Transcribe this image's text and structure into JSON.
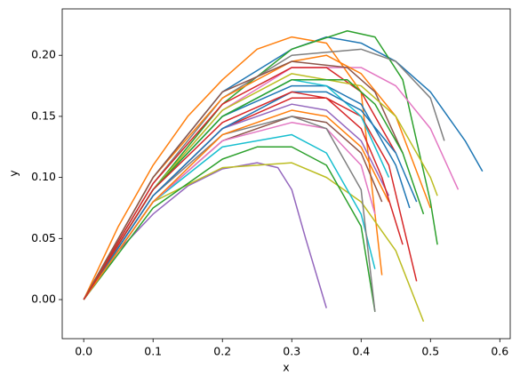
{
  "chart_data": {
    "type": "line",
    "x_label": "x",
    "y_label": "y",
    "xlim": [
      -0.031,
      0.615
    ],
    "ylim": [
      -0.032,
      0.238
    ],
    "xticks": [
      {
        "value": 0,
        "label": "0.0"
      },
      {
        "value": 0.1,
        "label": "0.1"
      },
      {
        "value": 0.2,
        "label": "0.2"
      },
      {
        "value": 0.3,
        "label": "0.3"
      },
      {
        "value": 0.4,
        "label": "0.4"
      },
      {
        "value": 0.5,
        "label": "0.5"
      },
      {
        "value": 0.6,
        "label": "0.6"
      }
    ],
    "yticks": [
      {
        "value": 0,
        "label": "0.00"
      },
      {
        "value": 0.05,
        "label": "0.05"
      },
      {
        "value": 0.1,
        "label": "0.10"
      },
      {
        "value": 0.15,
        "label": "0.15"
      },
      {
        "value": 0.2,
        "label": "0.20"
      }
    ],
    "grid": false,
    "series": [
      {
        "color": "#1f77b4",
        "x": [
          0,
          0.1,
          0.2,
          0.3,
          0.35,
          0.4,
          0.45,
          0.5,
          0.55,
          0.575
        ],
        "values": [
          0,
          0.1,
          0.17,
          0.205,
          0.215,
          0.21,
          0.195,
          0.17,
          0.13,
          0.105
        ]
      },
      {
        "color": "#ff7f0e",
        "x": [
          0,
          0.05,
          0.1,
          0.15,
          0.2,
          0.25,
          0.3,
          0.35,
          0.4,
          0.43
        ],
        "values": [
          0,
          0.06,
          0.11,
          0.15,
          0.18,
          0.205,
          0.215,
          0.21,
          0.17,
          0.02
        ]
      },
      {
        "color": "#2ca02c",
        "x": [
          0,
          0.1,
          0.2,
          0.3,
          0.38,
          0.42,
          0.46,
          0.5,
          0.51
        ],
        "values": [
          0,
          0.09,
          0.16,
          0.205,
          0.22,
          0.215,
          0.18,
          0.08,
          0.045
        ]
      },
      {
        "color": "#d62728",
        "x": [
          0,
          0.1,
          0.2,
          0.3,
          0.35,
          0.4,
          0.44,
          0.48
        ],
        "values": [
          0,
          0.085,
          0.14,
          0.165,
          0.165,
          0.15,
          0.11,
          0.015
        ]
      },
      {
        "color": "#9467bd",
        "x": [
          0,
          0.05,
          0.1,
          0.15,
          0.2,
          0.25,
          0.28,
          0.3,
          0.32,
          0.35
        ],
        "values": [
          0,
          0.04,
          0.07,
          0.093,
          0.107,
          0.112,
          0.108,
          0.09,
          0.05,
          -0.007
        ]
      },
      {
        "color": "#8c564b",
        "x": [
          0,
          0.1,
          0.2,
          0.3,
          0.35,
          0.4,
          0.43
        ],
        "values": [
          0,
          0.08,
          0.13,
          0.15,
          0.145,
          0.12,
          0.08
        ]
      },
      {
        "color": "#e377c2",
        "x": [
          0,
          0.1,
          0.2,
          0.3,
          0.4,
          0.45,
          0.5,
          0.54
        ],
        "values": [
          0,
          0.09,
          0.155,
          0.19,
          0.19,
          0.175,
          0.14,
          0.09
        ]
      },
      {
        "color": "#7f7f7f",
        "x": [
          0,
          0.1,
          0.2,
          0.3,
          0.4,
          0.45,
          0.5,
          0.52
        ],
        "values": [
          0,
          0.095,
          0.165,
          0.2,
          0.205,
          0.195,
          0.165,
          0.13
        ]
      },
      {
        "color": "#bcbd22",
        "x": [
          0,
          0.1,
          0.2,
          0.3,
          0.35,
          0.4,
          0.45,
          0.49
        ],
        "values": [
          0,
          0.08,
          0.108,
          0.112,
          0.1,
          0.08,
          0.04,
          -0.018
        ]
      },
      {
        "color": "#17becf",
        "x": [
          0,
          0.1,
          0.2,
          0.3,
          0.35,
          0.4,
          0.42
        ],
        "values": [
          0,
          0.08,
          0.125,
          0.135,
          0.12,
          0.07,
          0.025
        ]
      },
      {
        "color": "#1f77b4",
        "x": [
          0,
          0.1,
          0.2,
          0.3,
          0.35,
          0.4,
          0.45,
          0.47
        ],
        "values": [
          0,
          0.09,
          0.15,
          0.175,
          0.175,
          0.16,
          0.11,
          0.075
        ]
      },
      {
        "color": "#ff7f0e",
        "x": [
          0,
          0.1,
          0.2,
          0.3,
          0.35,
          0.4,
          0.45,
          0.5
        ],
        "values": [
          0,
          0.1,
          0.165,
          0.195,
          0.2,
          0.185,
          0.15,
          0.075
        ]
      },
      {
        "color": "#2ca02c",
        "x": [
          0,
          0.1,
          0.2,
          0.25,
          0.3,
          0.35,
          0.4,
          0.42
        ],
        "values": [
          0,
          0.075,
          0.115,
          0.125,
          0.125,
          0.11,
          0.06,
          -0.01
        ]
      },
      {
        "color": "#d62728",
        "x": [
          0,
          0.1,
          0.2,
          0.3,
          0.35,
          0.4,
          0.45
        ],
        "values": [
          0,
          0.095,
          0.16,
          0.19,
          0.19,
          0.17,
          0.12
        ]
      },
      {
        "color": "#9467bd",
        "x": [
          0,
          0.1,
          0.2,
          0.3,
          0.35,
          0.4,
          0.44
        ],
        "values": [
          0,
          0.085,
          0.14,
          0.16,
          0.155,
          0.13,
          0.085
        ]
      },
      {
        "color": "#8c564b",
        "x": [
          0,
          0.1,
          0.2,
          0.3,
          0.38,
          0.42,
          0.46
        ],
        "values": [
          0,
          0.1,
          0.17,
          0.195,
          0.19,
          0.17,
          0.12
        ]
      },
      {
        "color": "#e377c2",
        "x": [
          0,
          0.1,
          0.2,
          0.3,
          0.35,
          0.4,
          0.42
        ],
        "values": [
          0,
          0.08,
          0.13,
          0.145,
          0.14,
          0.11,
          0.07
        ]
      },
      {
        "color": "#7f7f7f",
        "x": [
          0,
          0.1,
          0.2,
          0.3,
          0.35,
          0.4,
          0.42
        ],
        "values": [
          0,
          0.085,
          0.135,
          0.15,
          0.14,
          0.09,
          -0.01
        ]
      },
      {
        "color": "#bcbd22",
        "x": [
          0,
          0.1,
          0.2,
          0.3,
          0.4,
          0.45,
          0.5,
          0.51
        ],
        "values": [
          0,
          0.09,
          0.155,
          0.185,
          0.175,
          0.15,
          0.1,
          0.085
        ]
      },
      {
        "color": "#17becf",
        "x": [
          0,
          0.1,
          0.2,
          0.3,
          0.35,
          0.4,
          0.44
        ],
        "values": [
          0,
          0.09,
          0.15,
          0.18,
          0.175,
          0.15,
          0.1
        ]
      },
      {
        "color": "#1f77b4",
        "x": [
          0,
          0.1,
          0.2,
          0.3,
          0.35,
          0.4,
          0.45,
          0.48
        ],
        "values": [
          0,
          0.085,
          0.14,
          0.17,
          0.17,
          0.155,
          0.12,
          0.08
        ]
      },
      {
        "color": "#ff7f0e",
        "x": [
          0,
          0.1,
          0.2,
          0.3,
          0.35,
          0.4,
          0.44
        ],
        "values": [
          0,
          0.08,
          0.135,
          0.155,
          0.15,
          0.125,
          0.08
        ]
      },
      {
        "color": "#2ca02c",
        "x": [
          0,
          0.1,
          0.2,
          0.3,
          0.38,
          0.42,
          0.46,
          0.49
        ],
        "values": [
          0,
          0.09,
          0.15,
          0.18,
          0.18,
          0.16,
          0.12,
          0.07
        ]
      },
      {
        "color": "#d62728",
        "x": [
          0,
          0.1,
          0.2,
          0.3,
          0.35,
          0.4,
          0.43,
          0.46
        ],
        "values": [
          0,
          0.09,
          0.145,
          0.17,
          0.165,
          0.14,
          0.1,
          0.045
        ]
      }
    ]
  }
}
